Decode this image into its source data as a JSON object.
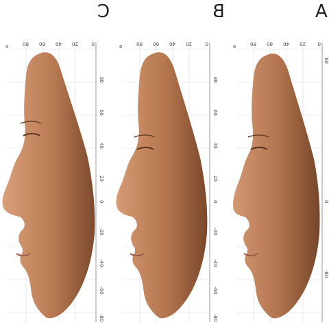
{
  "panels": [
    {
      "letter": "C",
      "top_tick": "o",
      "top_labels": [
        "80",
        "60",
        "40",
        "20",
        "0"
      ],
      "side_labels": [
        "80",
        "60",
        "40",
        "20",
        "0",
        "-20",
        "-40",
        "-60",
        "-80"
      ]
    },
    {
      "letter": "B",
      "top_tick": "o",
      "top_labels": [
        "80",
        "60",
        "40",
        "20",
        "0"
      ],
      "side_labels": [
        "80",
        "60",
        "40",
        "20",
        "0",
        "-20",
        "-40",
        "-60",
        "-80"
      ]
    },
    {
      "letter": "A",
      "top_tick": "o",
      "top_labels": [
        "80",
        "60",
        "40",
        "20",
        "0"
      ],
      "side_labels": [
        "80",
        "0",
        "-80"
      ]
    }
  ],
  "colors": {
    "skin_light": "#d39a74",
    "skin_dark": "#8a5636",
    "grid": "#d8d8d8",
    "axis": "#9a9a9a"
  }
}
